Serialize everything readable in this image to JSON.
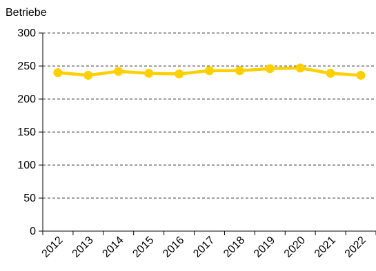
{
  "chart_data": {
    "type": "line",
    "ylabel": "Betriebe",
    "x": [
      "2012",
      "2013",
      "2014",
      "2015",
      "2016",
      "2017",
      "2018",
      "2019",
      "2020",
      "2021",
      "2022"
    ],
    "series": [
      {
        "values": [
          240,
          236,
          242,
          239,
          238,
          243,
          243,
          246,
          247,
          239,
          236
        ],
        "color": "#FFD000"
      }
    ],
    "ylim": [
      0,
      300
    ],
    "yticks": [
      0,
      50,
      100,
      150,
      200,
      250,
      300
    ],
    "grid": "horizontal-dashed",
    "legend": "none"
  }
}
